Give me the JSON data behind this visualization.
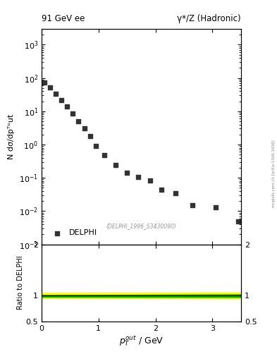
{
  "title_left": "91 GeV ee",
  "title_right": "γ*/Z (Hadronic)",
  "ylabel_main": "N dσ/dpᵀᵒut",
  "ylabel_ratio": "Ratio to DELPHI",
  "watermark": "(DELPHI_1996_S3430090)",
  "side_label": "mcplots.cern.ch [arXiv:1306.3436]",
  "legend_label": "DELPHI",
  "data_x": [
    0.05,
    0.15,
    0.25,
    0.35,
    0.45,
    0.55,
    0.65,
    0.75,
    0.85,
    0.95,
    1.1,
    1.3,
    1.5,
    1.7,
    1.9,
    2.1,
    2.35,
    2.65,
    3.05,
    3.45
  ],
  "data_y": [
    75,
    52,
    33,
    22,
    14,
    8.5,
    5.0,
    3.0,
    1.8,
    0.9,
    0.48,
    0.24,
    0.145,
    0.105,
    0.085,
    0.045,
    0.035,
    0.015,
    0.013,
    0.005
  ],
  "marker_color": "#333333",
  "marker_size": 4,
  "ylim_main": [
    0.001,
    3000.0
  ],
  "xlim": [
    0,
    3.5
  ],
  "ylim_ratio": [
    0.5,
    2.0
  ],
  "ratio_line_y": 1.0,
  "ratio_band_yellow_lower": 0.955,
  "ratio_band_yellow_upper": 1.055,
  "ratio_band_green_lower": 0.975,
  "ratio_band_green_upper": 1.01,
  "band_yellow_color": "#ffff00",
  "band_green_color": "#00bb00",
  "ratio_line_color": "#000000",
  "background_color": "#ffffff"
}
